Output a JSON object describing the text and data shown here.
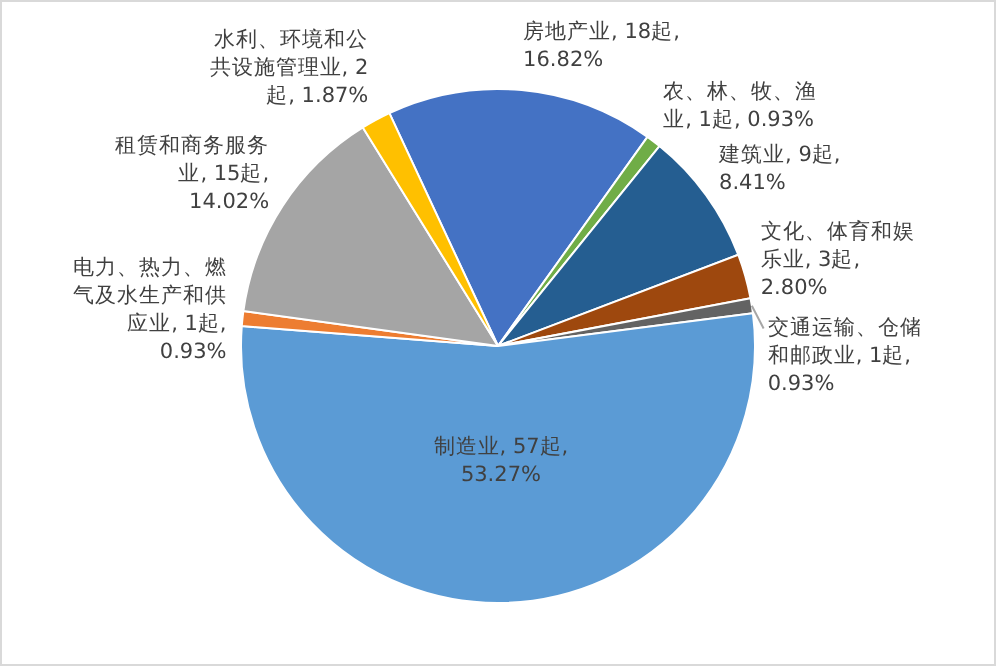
{
  "chart_data": {
    "type": "pie",
    "categories": [
      "房地产业",
      "农、林、牧、渔业",
      "建筑业",
      "文化、体育和娱乐业",
      "交通运输、仓储和邮政业",
      "制造业",
      "电力、热力、燃气及水生产和供应业",
      "租赁和商务服务业",
      "水利、环境和公共设施管理业"
    ],
    "values": [
      18,
      1,
      9,
      3,
      1,
      57,
      1,
      15,
      2
    ],
    "value_labels": [
      "18起, 16.82%",
      "1起, 0.93%",
      "9起, 8.41%",
      "3起, 2.80%",
      "1起, 0.93%",
      "57起, 53.27%",
      "1起, 0.93%",
      "15起, 14.02%",
      "2起, 1.87%"
    ],
    "colors": [
      "#4472c4",
      "#70ad47",
      "#255e91",
      "#9e480e",
      "#636363",
      "#5b9bd5",
      "#ed7d31",
      "#a5a5a5",
      "#ffc000"
    ],
    "legend": false
  }
}
